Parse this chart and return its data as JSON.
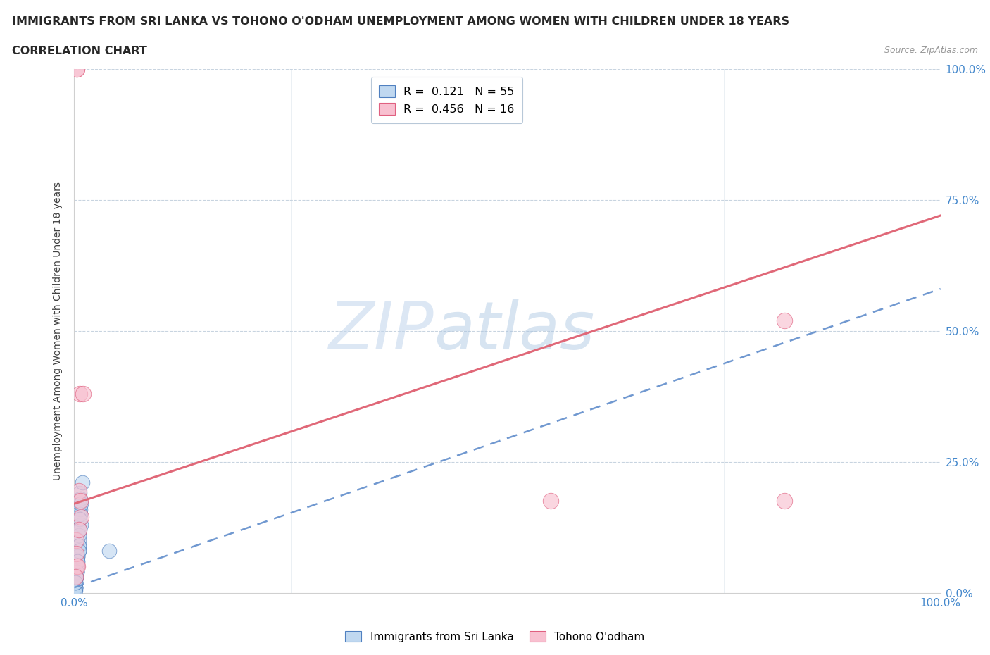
{
  "title_line1": "IMMIGRANTS FROM SRI LANKA VS TOHONO O'ODHAM UNEMPLOYMENT AMONG WOMEN WITH CHILDREN UNDER 18 YEARS",
  "title_line2": "CORRELATION CHART",
  "source_text": "Source: ZipAtlas.com",
  "ylabel": "Unemployment Among Women with Children Under 18 years",
  "watermark_zip": "ZIP",
  "watermark_atlas": "atlas",
  "legend_entries": [
    {
      "label": "R =  0.121   N = 55",
      "color": "#b8d0ec"
    },
    {
      "label": "R =  0.456   N = 16",
      "color": "#f4a8bc"
    }
  ],
  "legend_labels_bottom": [
    "Immigrants from Sri Lanka",
    "Tohono O'odham"
  ],
  "blue_scatter_x": [
    0.006,
    0.009,
    0.004,
    0.002,
    0.005,
    0.001,
    0.0005,
    0.003,
    0.004,
    0.007,
    0.008,
    0.002,
    0.0015,
    0.001,
    0.006,
    0.003,
    0.005,
    0.002,
    0.001,
    0.003,
    0.005,
    0.001,
    0.002,
    0.004,
    0.007,
    0.001,
    0.003,
    0.005,
    0.002,
    0.0008,
    0.007,
    0.0015,
    0.004,
    0.002,
    0.0006,
    0.006,
    0.003,
    0.005,
    0.001,
    0.002,
    0.0005,
    0.004,
    0.003,
    0.001,
    0.002,
    0.005,
    0.0008,
    0.003,
    0.001,
    0.004,
    0.008,
    0.002,
    0.006,
    0.001,
    0.04
  ],
  "blue_scatter_y": [
    0.19,
    0.21,
    0.05,
    0.03,
    0.1,
    0.01,
    0.005,
    0.06,
    0.07,
    0.16,
    0.13,
    0.04,
    0.02,
    0.01,
    0.17,
    0.08,
    0.09,
    0.04,
    0.02,
    0.05,
    0.11,
    0.005,
    0.03,
    0.07,
    0.15,
    0.01,
    0.04,
    0.08,
    0.03,
    0.005,
    0.18,
    0.02,
    0.06,
    0.03,
    0.004,
    0.14,
    0.04,
    0.09,
    0.01,
    0.03,
    0.003,
    0.07,
    0.04,
    0.01,
    0.03,
    0.08,
    0.003,
    0.04,
    0.02,
    0.06,
    0.17,
    0.03,
    0.12,
    0.02,
    0.08
  ],
  "pink_scatter_x": [
    0.003,
    0.005,
    0.002,
    0.006,
    0.008,
    0.003,
    0.01,
    0.82,
    0.003,
    0.55,
    0.82,
    0.005,
    0.002,
    0.004,
    0.007,
    0.001
  ],
  "pink_scatter_y": [
    1.0,
    0.195,
    0.1,
    0.38,
    0.145,
    0.05,
    0.38,
    0.52,
    1.0,
    0.175,
    0.175,
    0.12,
    0.075,
    0.05,
    0.175,
    0.03
  ],
  "blue_line_x_start": 0.0,
  "blue_line_x_end": 1.0,
  "blue_line_y_start": 0.01,
  "blue_line_y_end": 0.58,
  "pink_line_x_start": 0.0,
  "pink_line_x_end": 1.0,
  "pink_line_y_start": 0.17,
  "pink_line_y_end": 0.72,
  "xlim": [
    0.0,
    1.0
  ],
  "ylim": [
    0.0,
    1.0
  ],
  "xtick_positions": [
    0.0,
    0.25,
    0.5,
    0.75,
    1.0
  ],
  "xtick_labels": [
    "0.0%",
    "",
    "",
    "",
    "100.0%"
  ],
  "ytick_positions": [
    0.0,
    0.25,
    0.5,
    0.75,
    1.0
  ],
  "ytick_labels_right": [
    "0.0%",
    "25.0%",
    "50.0%",
    "75.0%",
    "100.0%"
  ],
  "blue_fill_color": "#c0d8f0",
  "blue_edge_color": "#5080c0",
  "pink_fill_color": "#f8c0d0",
  "pink_edge_color": "#e06080",
  "blue_line_color": "#7098d0",
  "pink_line_color": "#e06878",
  "grid_color": "#c8d4e0",
  "title_color": "#282828",
  "axis_label_color": "#4488cc",
  "background_color": "#ffffff"
}
